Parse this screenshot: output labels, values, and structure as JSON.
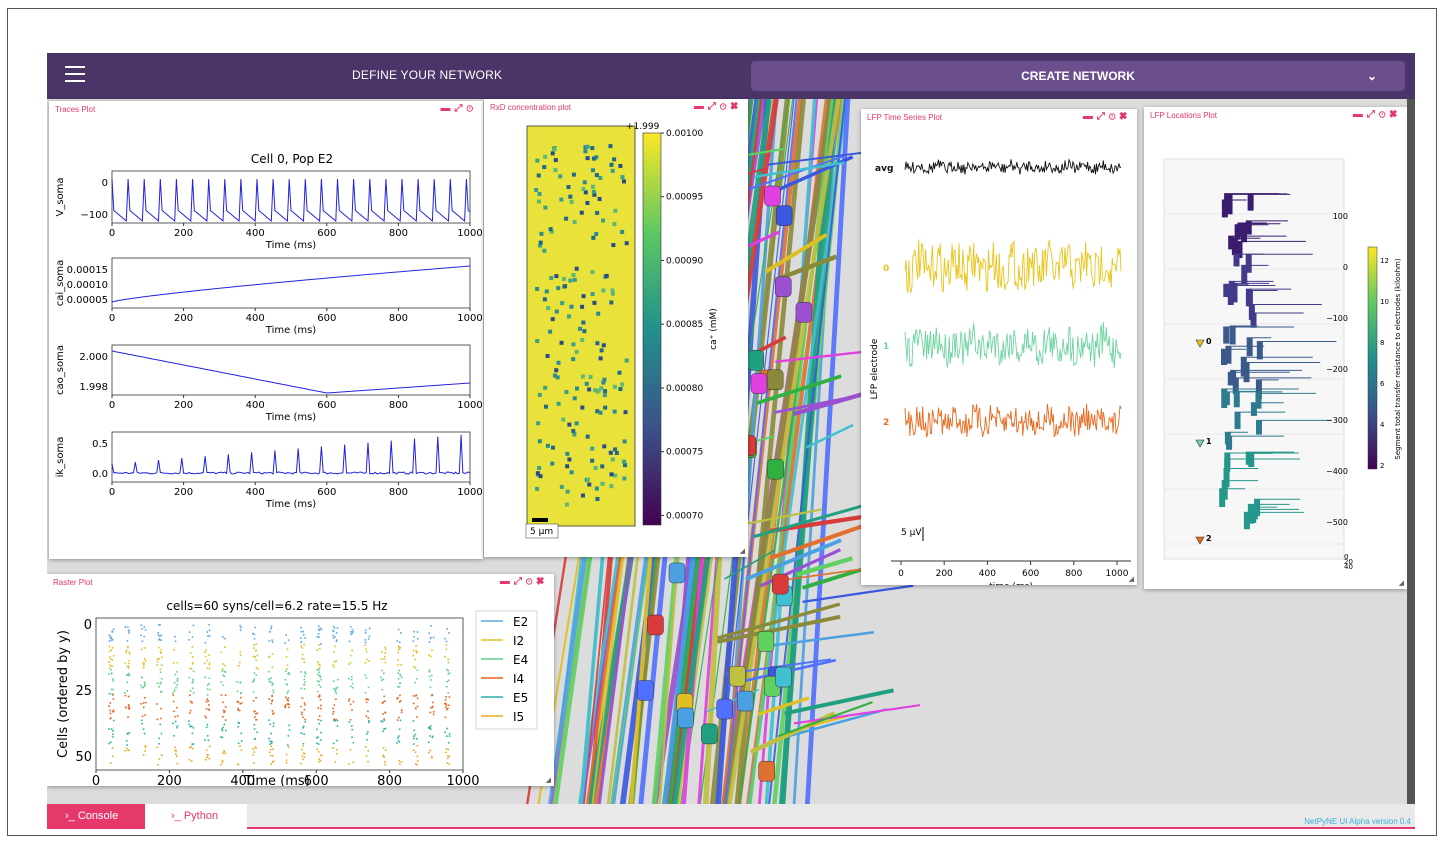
{
  "header": {
    "define_label": "DEFINE YOUR NETWORK",
    "create_label": "CREATE NETWORK",
    "menu_icon": "hamburger-icon",
    "dropdown_icon": "chevron-down-icon"
  },
  "panels": {
    "traces": {
      "title": "Traces Plot"
    },
    "rxd": {
      "title": "RxD concentration plot"
    },
    "lfp_ts": {
      "title": "LFP Time Series Plot"
    },
    "lfp_loc": {
      "title": "LFP Locations Plot"
    },
    "raster": {
      "title": "Raster Plot"
    },
    "controls": {
      "minimize": "▬",
      "maximize": "⤢",
      "detach": "⊙",
      "close": "✖"
    }
  },
  "traces_plot": {
    "title": "Cell 0, Pop E2",
    "xlabel": "Time (ms)",
    "x_ticks": [
      "0",
      "200",
      "400",
      "600",
      "800",
      "1000"
    ],
    "subplots": [
      {
        "ylabel": "V_soma",
        "y_ticks": [
          "0",
          "−100"
        ]
      },
      {
        "ylabel": "cai_soma",
        "y_ticks": [
          "0.00015",
          "0.00010",
          "0.00005"
        ]
      },
      {
        "ylabel": "cao_soma",
        "y_ticks": [
          "2.000",
          "1.998"
        ]
      },
      {
        "ylabel": "ik_soma",
        "y_ticks": [
          "0.5",
          "0.0"
        ]
      }
    ]
  },
  "rxd_plot": {
    "offset_label": "+1.999",
    "colorbar_label": "ca⁺ (mM)",
    "colorbar_ticks": [
      "0.00100",
      "0.00095",
      "0.00090",
      "0.00085",
      "0.00080",
      "0.00075",
      "0.00070"
    ],
    "scalebar_label": "5 µm"
  },
  "lfp_timeseries": {
    "ylabel": "LFP electrode",
    "xlabel": "time (ms)",
    "x_ticks": [
      "0",
      "200",
      "400",
      "600",
      "800",
      "1000"
    ],
    "traces": [
      {
        "label": "avg",
        "color": "#111111"
      },
      {
        "label": "0",
        "color": "#e8c51a"
      },
      {
        "label": "1",
        "color": "#6fd4a0"
      },
      {
        "label": "2",
        "color": "#e86a1f"
      }
    ],
    "scale_label": "5 µV"
  },
  "lfp_locations": {
    "colorbar_label": "Segment total transfer resistance to electrodes (kiloohm)",
    "colorbar_ticks": [
      "12",
      "10",
      "8",
      "6",
      "4",
      "2"
    ],
    "y_ticks": [
      "100",
      "0",
      "−100",
      "−200",
      "−300",
      "−400",
      "−500"
    ],
    "electrodes": [
      "0",
      "1",
      "2"
    ],
    "bottom_ticks": [
      "0",
      "20",
      "40"
    ]
  },
  "raster_plot": {
    "title": "cells=60 syns/cell=6.2 rate=15.5 Hz",
    "xlabel": "Time (ms)",
    "ylabel": "Cells (ordered by y)",
    "x_ticks": [
      "0",
      "200",
      "400",
      "600",
      "800",
      "1000"
    ],
    "y_ticks": [
      "0",
      "25",
      "50"
    ],
    "legend": [
      {
        "name": "E2",
        "color": "#5aa8de"
      },
      {
        "name": "I2",
        "color": "#e0c020"
      },
      {
        "name": "E4",
        "color": "#5fd08a"
      },
      {
        "name": "I4",
        "color": "#e8621a"
      },
      {
        "name": "E5",
        "color": "#2ab0a8"
      },
      {
        "name": "I5",
        "color": "#e8a820"
      }
    ]
  },
  "bottom": {
    "console_tab": "›_ Console",
    "python_tab": "›_ Python",
    "version": "NetPyNE UI Alpha version 0.4"
  },
  "colors": {
    "header": "#4b3468",
    "create_button": "#6a4f8c",
    "accent": "#e5396b"
  }
}
